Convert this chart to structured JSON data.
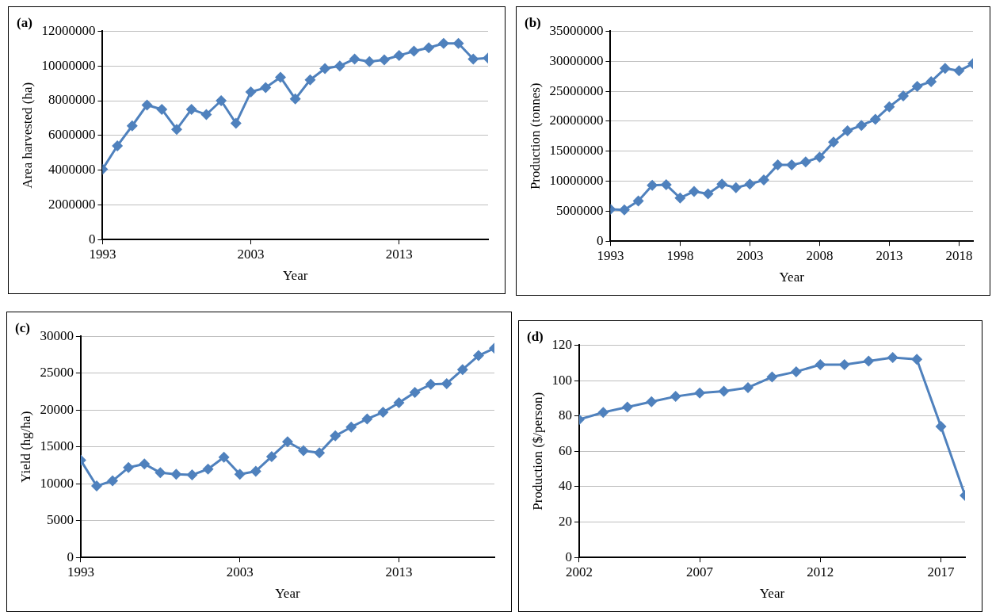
{
  "chart_data": [
    {
      "type": "line",
      "title": "(a)",
      "xlabel": "Year",
      "ylabel": "Area harvested (ha)",
      "x": [
        1993,
        1994,
        1995,
        1996,
        1997,
        1998,
        1999,
        2000,
        2001,
        2002,
        2003,
        2004,
        2005,
        2006,
        2007,
        2008,
        2009,
        2010,
        2011,
        2012,
        2013,
        2014,
        2015,
        2016,
        2017,
        2018,
        2019
      ],
      "series": [
        {
          "color": "#4f81bd",
          "values": [
            4050000,
            5400000,
            6550000,
            7750000,
            7500000,
            6350000,
            7500000,
            7200000,
            8000000,
            6700000,
            8500000,
            8750000,
            9350000,
            8100000,
            9200000,
            9850000,
            10000000,
            10400000,
            10250000,
            10350000,
            10600000,
            10850000,
            11050000,
            11300000,
            11300000,
            10400000,
            10450000
          ]
        }
      ],
      "xlim": [
        1993,
        2019
      ],
      "xticks": [
        1993,
        2003,
        2013
      ],
      "ylim": [
        0,
        12000000
      ],
      "yticks": [
        0,
        2000000,
        4000000,
        6000000,
        8000000,
        10000000,
        12000000
      ],
      "grid": "y",
      "marker": "diamond",
      "line_style": "solid"
    },
    {
      "type": "line",
      "title": "(b)",
      "xlabel": "Year",
      "ylabel": "Production (tonnes)",
      "x": [
        1993,
        1994,
        1995,
        1996,
        1997,
        1998,
        1999,
        2000,
        2001,
        2002,
        2003,
        2004,
        2005,
        2006,
        2007,
        2008,
        2009,
        2010,
        2011,
        2012,
        2013,
        2014,
        2015,
        2016,
        2017,
        2018,
        2019
      ],
      "series": [
        {
          "color": "#4f81bd",
          "values": [
            5300000,
            5200000,
            6700000,
            9300000,
            9400000,
            7200000,
            8300000,
            7900000,
            9500000,
            8900000,
            9500000,
            10200000,
            12700000,
            12700000,
            13200000,
            14000000,
            16500000,
            18400000,
            19300000,
            20300000,
            22400000,
            24200000,
            25800000,
            26600000,
            28800000,
            28400000,
            29600000
          ]
        }
      ],
      "xlim": [
        1993,
        2019
      ],
      "xticks": [
        1993,
        1998,
        2003,
        2008,
        2013,
        2018
      ],
      "ylim": [
        0,
        35000000
      ],
      "yticks": [
        0,
        5000000,
        10000000,
        15000000,
        20000000,
        25000000,
        30000000,
        35000000
      ],
      "grid": "y",
      "marker": "diamond",
      "line_style": "solid"
    },
    {
      "type": "line",
      "title": "(c)",
      "xlabel": "Year",
      "ylabel": "Yield (hg/ha)",
      "x": [
        1993,
        1994,
        1995,
        1996,
        1997,
        1998,
        1999,
        2000,
        2001,
        2002,
        2003,
        2004,
        2005,
        2006,
        2007,
        2008,
        2009,
        2010,
        2011,
        2012,
        2013,
        2014,
        2015,
        2016,
        2017,
        2018,
        2019
      ],
      "series": [
        {
          "color": "#4f81bd",
          "values": [
            13200,
            9700,
            10400,
            12200,
            12700,
            11500,
            11300,
            11200,
            12000,
            13600,
            11300,
            11700,
            13700,
            15700,
            14500,
            14200,
            16500,
            17700,
            18800,
            19700,
            21000,
            22400,
            23500,
            23600,
            25500,
            27400,
            28400
          ]
        }
      ],
      "xlim": [
        1993,
        2019
      ],
      "xticks": [
        1993,
        2003,
        2013
      ],
      "ylim": [
        0,
        30000
      ],
      "yticks": [
        0,
        5000,
        10000,
        15000,
        20000,
        25000,
        30000
      ],
      "grid": "y",
      "marker": "diamond",
      "line_style": "solid"
    },
    {
      "type": "line",
      "title": "(d)",
      "xlabel": "Year",
      "ylabel": "Production ($/person)",
      "x": [
        2002,
        2003,
        2004,
        2005,
        2006,
        2007,
        2008,
        2009,
        2010,
        2011,
        2012,
        2013,
        2014,
        2015,
        2016,
        2017,
        2018
      ],
      "series": [
        {
          "color": "#4f81bd",
          "values": [
            78,
            82,
            85,
            88,
            91,
            93,
            94,
            96,
            102,
            105,
            109,
            109,
            111,
            113,
            112,
            74,
            35
          ]
        }
      ],
      "xlim": [
        2002,
        2018
      ],
      "xticks": [
        2002,
        2007,
        2012,
        2017
      ],
      "ylim": [
        0,
        120
      ],
      "yticks": [
        0,
        20,
        40,
        60,
        80,
        100,
        120
      ],
      "grid": "y",
      "marker": "diamond",
      "line_style": "solid"
    }
  ]
}
